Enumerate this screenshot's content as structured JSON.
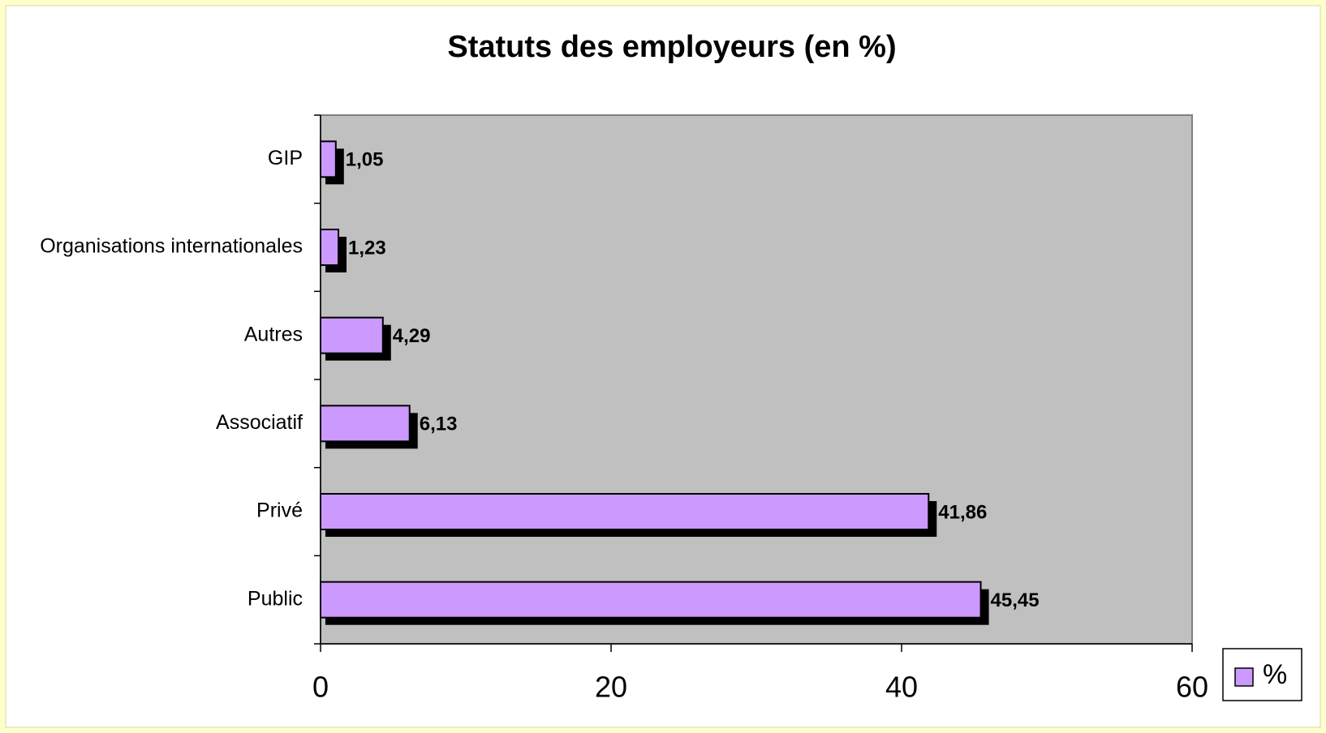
{
  "chart_data": {
    "type": "hbar",
    "title": "Statuts des employeurs (en %)",
    "categories": [
      "GIP",
      "Organisations internationales",
      "Autres",
      "Associatif",
      "Privé",
      "Public"
    ],
    "series": [
      {
        "name": "%",
        "color": "#cc99ff",
        "values": [
          1.05,
          1.23,
          4.29,
          6.13,
          41.86,
          45.45
        ],
        "value_labels": [
          "1,05",
          "1,23",
          "4,29",
          "6,13",
          "41,86",
          "45,45"
        ]
      }
    ],
    "xlim": [
      0,
      60
    ],
    "xticks": [
      0,
      20,
      40,
      60
    ],
    "legend": "bottom-right",
    "plot_background": "#c0c0c0"
  }
}
